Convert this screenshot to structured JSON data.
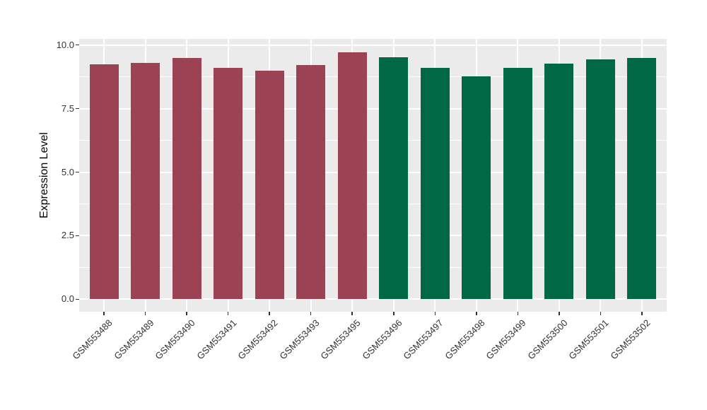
{
  "chart_data": {
    "type": "bar",
    "title": "",
    "xlabel": "",
    "ylabel": "Expression Level",
    "categories": [
      "GSM553488",
      "GSM553489",
      "GSM553490",
      "GSM553491",
      "GSM553492",
      "GSM553493",
      "GSM553495",
      "GSM553496",
      "GSM553497",
      "GSM553498",
      "GSM553499",
      "GSM553500",
      "GSM553501",
      "GSM553502"
    ],
    "values": [
      9.24,
      9.3,
      9.49,
      9.1,
      8.99,
      9.22,
      9.71,
      9.53,
      9.1,
      8.76,
      9.11,
      9.26,
      9.42,
      9.48
    ],
    "bar_colors": [
      "#9B4254",
      "#9B4254",
      "#9B4254",
      "#9B4254",
      "#9B4254",
      "#9B4254",
      "#9B4254",
      "#016845",
      "#016845",
      "#016845",
      "#016845",
      "#016845",
      "#016845",
      "#016845"
    ],
    "ylim": [
      -0.49,
      10.24
    ],
    "ytick_values": [
      0,
      2.5,
      5,
      7.5,
      10
    ],
    "ytick_labels": [
      "0.0",
      "2.5",
      "5.0",
      "7.5",
      "10.0"
    ],
    "minor_gridline_values": [
      1.25,
      3.75,
      6.25,
      8.75
    ],
    "legend": "none",
    "grid": "on",
    "panel_background": "#EBEBEB",
    "gridline_color": "#FFFFFF",
    "axis_text_color": "#333333"
  }
}
